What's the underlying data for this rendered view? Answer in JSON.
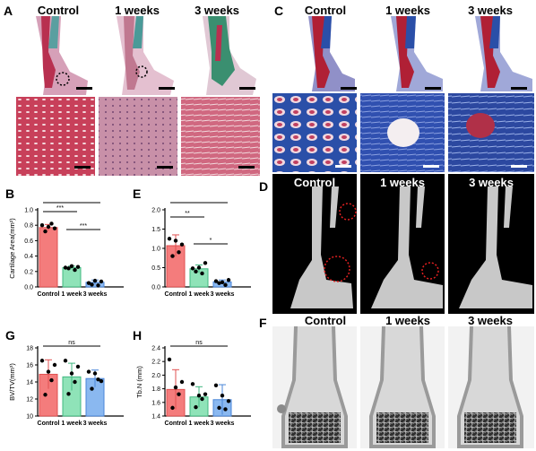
{
  "panel_labels": {
    "A": "A",
    "B": "B",
    "C": "C",
    "D": "D",
    "E": "E",
    "F": "F",
    "G": "G",
    "H": "H"
  },
  "panel_A": {
    "titles": [
      "Control",
      "1 weeks",
      "3 weeks"
    ],
    "stain_colors": [
      "#c8405a",
      "#3a8f88",
      "#e8c8d0"
    ]
  },
  "panel_C": {
    "titles": [
      "Control",
      "1 weeks",
      "3 weeks"
    ],
    "stain_colors": [
      "#b02035",
      "#2a4fa8",
      "#d8d8e8"
    ]
  },
  "panel_D": {
    "titles": [
      "Control",
      "1 weeks",
      "3 weeks"
    ]
  },
  "panel_F": {
    "titles": [
      "Control",
      "1 weeks",
      "3 weeks"
    ]
  },
  "colors": {
    "control": "#f47c7c",
    "week1": "#8fe3b8",
    "week3": "#8ab8f0",
    "control_dark": "#e05050",
    "week1_dark": "#40b880",
    "week3_dark": "#4a86d8"
  },
  "chart_data": [
    {
      "id": "B",
      "type": "bar",
      "categories": [
        "Control",
        "1 week",
        "3 weeks"
      ],
      "values": [
        0.77,
        0.25,
        0.06
      ],
      "errors": [
        0.04,
        0.02,
        0.03
      ],
      "points": [
        [
          0.8,
          0.72,
          0.78,
          0.82,
          0.76
        ],
        [
          0.25,
          0.24,
          0.27,
          0.22,
          0.26
        ],
        [
          0.05,
          0.03,
          0.08,
          0.02,
          0.07
        ]
      ],
      "ylabel": "Cartilage Area(mm²)",
      "ylim": [
        0,
        1.0
      ],
      "yticks": [
        "0.0",
        "0.2",
        "0.4",
        "0.6",
        "0.8",
        "1.0"
      ],
      "significance": [
        {
          "label": "***"
        },
        {
          "label": "***"
        },
        {
          "label": "***"
        }
      ]
    },
    {
      "id": "E",
      "type": "bar",
      "categories": [
        "Control",
        "1 week",
        "3 weeks"
      ],
      "values": [
        1.07,
        0.47,
        0.13
      ],
      "errors": [
        0.28,
        0.1,
        0.05
      ],
      "points": [
        [
          1.25,
          0.8,
          1.2,
          0.9,
          1.1
        ],
        [
          0.48,
          0.4,
          0.5,
          0.35,
          0.62
        ],
        [
          0.15,
          0.1,
          0.12,
          0.05,
          0.18
        ]
      ],
      "ylabel": "",
      "ylim": [
        0,
        2.0
      ],
      "yticks": [
        "0.0",
        "0.5",
        "1.0",
        "1.5",
        "2.0"
      ],
      "significance": [
        {
          "label": "***"
        },
        {
          "label": "**"
        },
        {
          "label": "*"
        }
      ]
    },
    {
      "id": "G",
      "type": "bar",
      "categories": [
        "Control",
        "1 week",
        "3 weeks"
      ],
      "values": [
        14.9,
        14.6,
        14.4
      ],
      "errors": [
        1.7,
        1.6,
        1.0
      ],
      "points": [
        [
          16.5,
          12.5,
          15.2,
          14.2,
          16.0
        ],
        [
          16.5,
          12.6,
          15.0,
          14.0,
          15.8
        ],
        [
          15.2,
          13.2,
          15.0,
          14.3,
          14.1
        ]
      ],
      "ylabel": "BV/TV(mm³)",
      "ylim": [
        10,
        18
      ],
      "yticks": [
        "10",
        "12",
        "14",
        "16",
        "18"
      ],
      "significance": [
        {
          "label": "ns"
        }
      ]
    },
    {
      "id": "H",
      "type": "bar",
      "categories": [
        "Control",
        "1 week",
        "3 weeks"
      ],
      "values": [
        1.79,
        1.68,
        1.64
      ],
      "errors": [
        0.29,
        0.15,
        0.22
      ],
      "points": [
        [
          2.23,
          1.52,
          1.82,
          1.72,
          1.9
        ],
        [
          1.87,
          1.53,
          1.7,
          1.65,
          1.72
        ],
        [
          1.85,
          1.52,
          1.7,
          1.5,
          1.62
        ]
      ],
      "ylabel": "Tb.N (mm)",
      "ylim": [
        1.4,
        2.4
      ],
      "yticks": [
        "1.4",
        "1.6",
        "1.8",
        "2.0",
        "2.2",
        "2.4"
      ],
      "significance": [
        {
          "label": "ns"
        }
      ]
    }
  ]
}
